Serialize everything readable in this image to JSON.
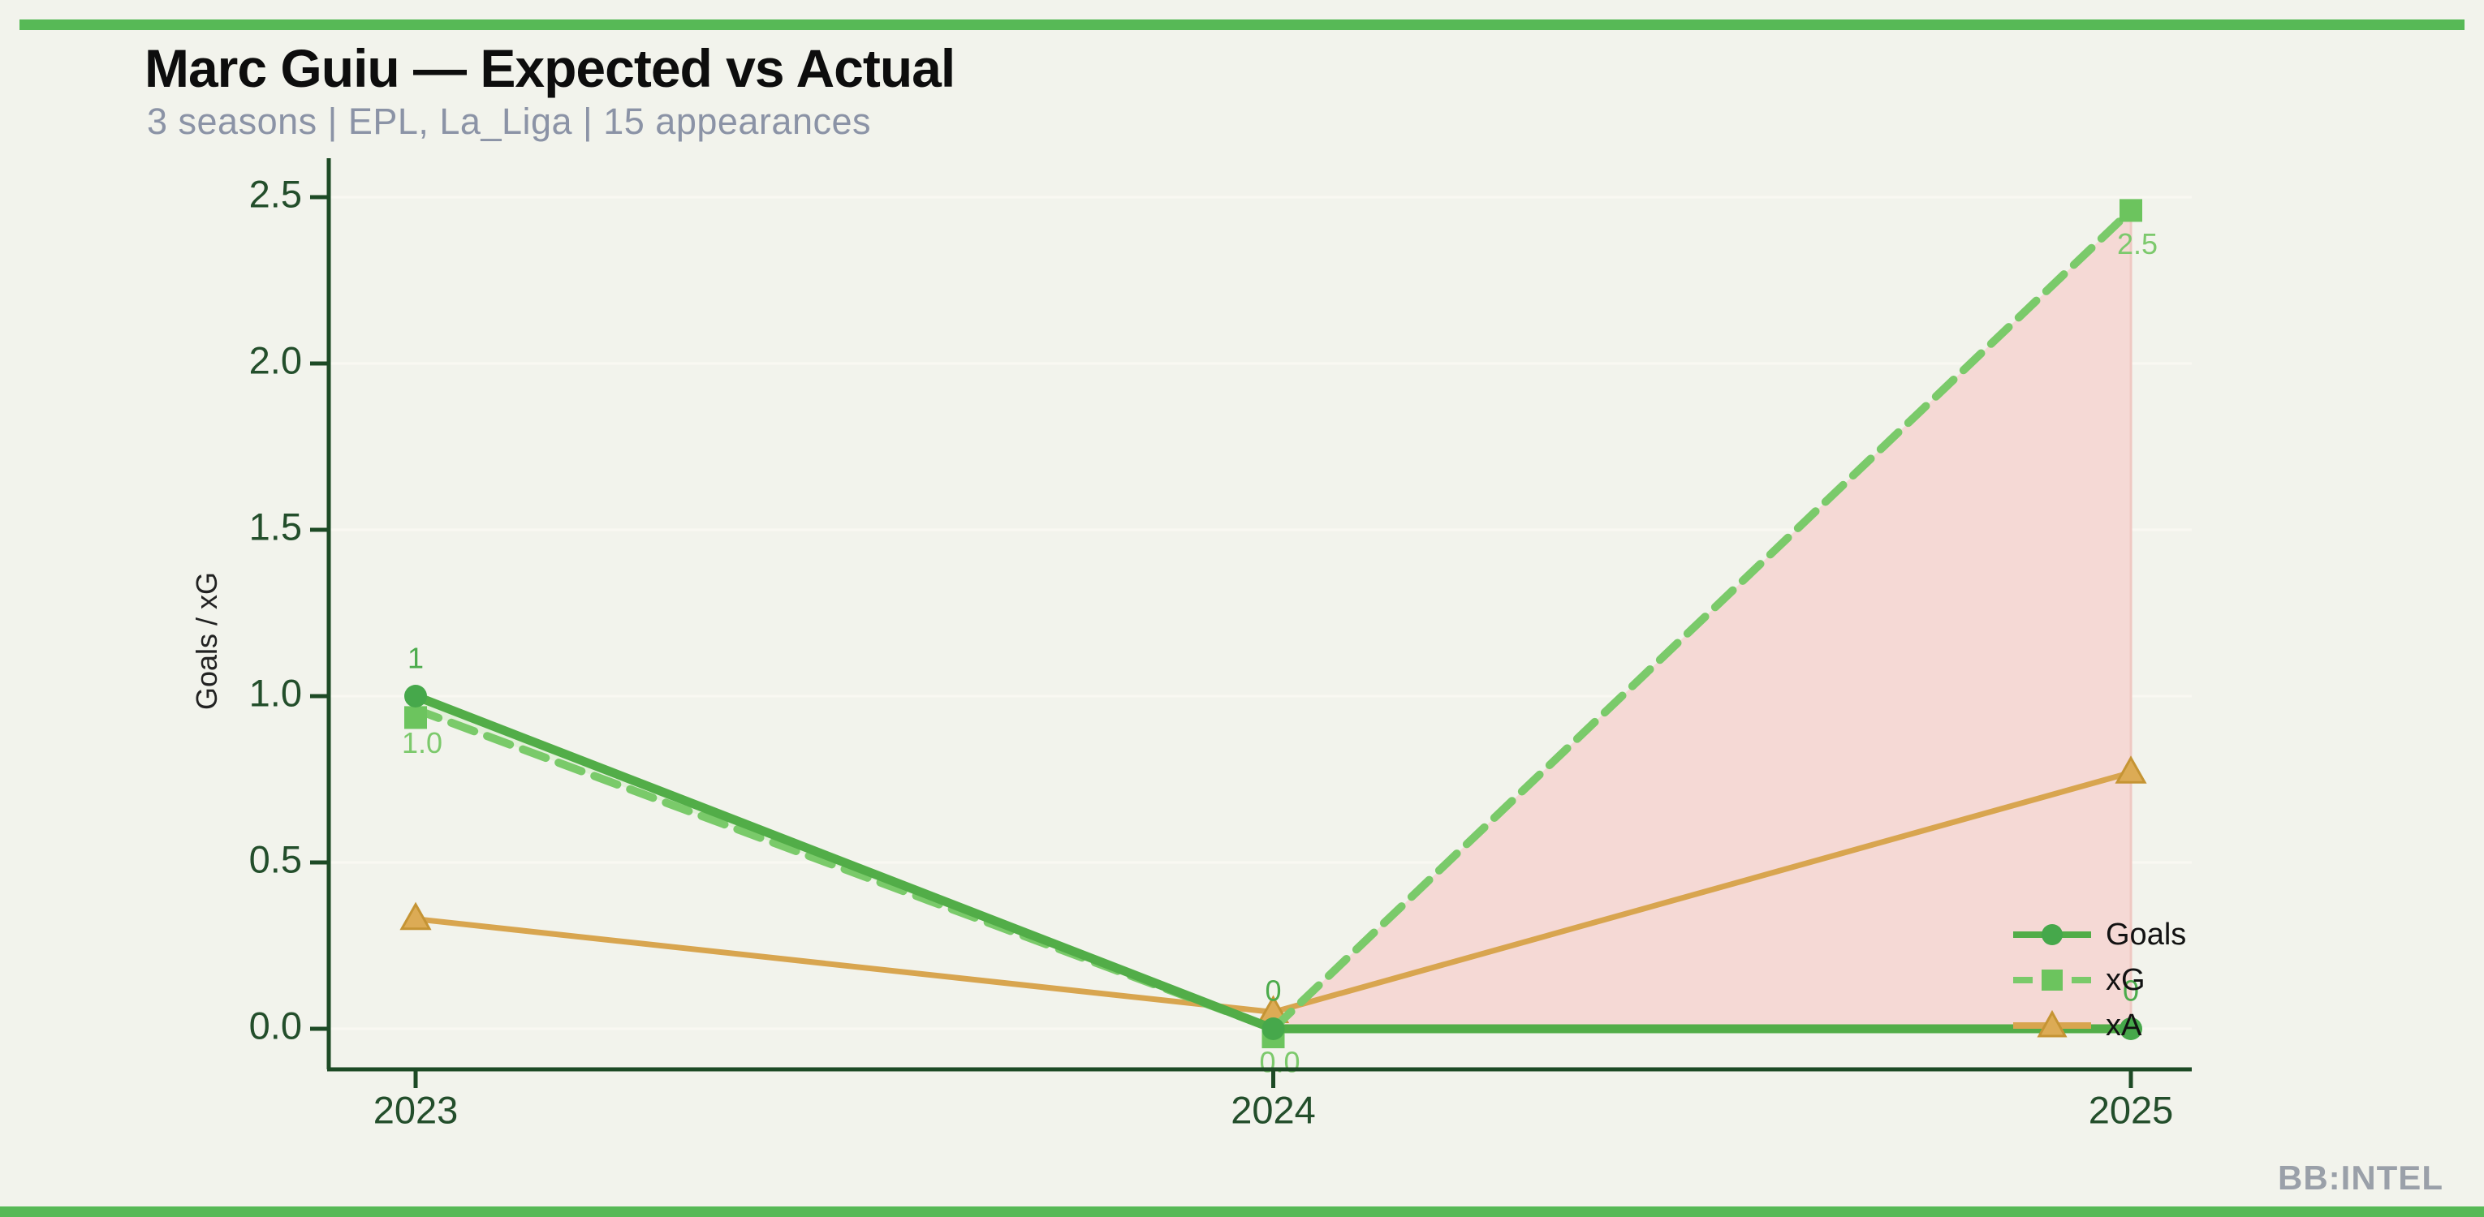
{
  "page": {
    "background": "#f2f3ec",
    "accent_bar_color": "#57b956"
  },
  "header": {
    "title": "Marc Guiu — Expected vs Actual",
    "subtitle": "3 seasons | EPL, La_Liga | 15 appearances"
  },
  "watermark": {
    "text": "BB:INTEL",
    "color": "#9aa0a9"
  },
  "chart_data": {
    "type": "line",
    "title": "Marc Guiu — Expected vs Actual",
    "categories": [
      "2023",
      "2024",
      "2025"
    ],
    "series": [
      {
        "name": "Goals",
        "values": [
          1,
          0,
          0
        ],
        "point_labels": [
          "1",
          "0",
          "0"
        ],
        "color": "#52ad48",
        "marker_color": "#46a84b",
        "marker": "circle",
        "line_style": "solid",
        "label_color": "#4cab4c"
      },
      {
        "name": "xG",
        "values": [
          0.96,
          0,
          2.46
        ],
        "point_labels": [
          "1.0",
          "0.0",
          "2.5"
        ],
        "color": "#7aca6a",
        "marker_color": "#6cc45e",
        "marker": "square",
        "line_style": "dashed",
        "label_color": "#7cc96c"
      },
      {
        "name": "xA",
        "values": [
          0.33,
          0.05,
          0.77
        ],
        "point_labels": null,
        "color": "#d8a54f",
        "marker_color": "#dcab55",
        "marker": "triangle",
        "line_style": "solid",
        "label_color": null
      }
    ],
    "ylabel": "Goals / xG",
    "yticks": [
      0.0,
      0.5,
      1.0,
      1.5,
      2.0,
      2.5
    ],
    "ylim": [
      -0.12,
      2.62
    ],
    "grid": "horizontal-faint",
    "legend_position": "lower right",
    "fill_between": {
      "a": "xG",
      "b": "Goals",
      "a_above_color": "#f5d9d5",
      "b_above_color": "#e3f0da",
      "a_above_edge_color": "#efc9c3"
    },
    "axis_color": "#1d4a25",
    "tick_label_color": "#234e2b",
    "gridline_color": "#f9f8f2"
  }
}
